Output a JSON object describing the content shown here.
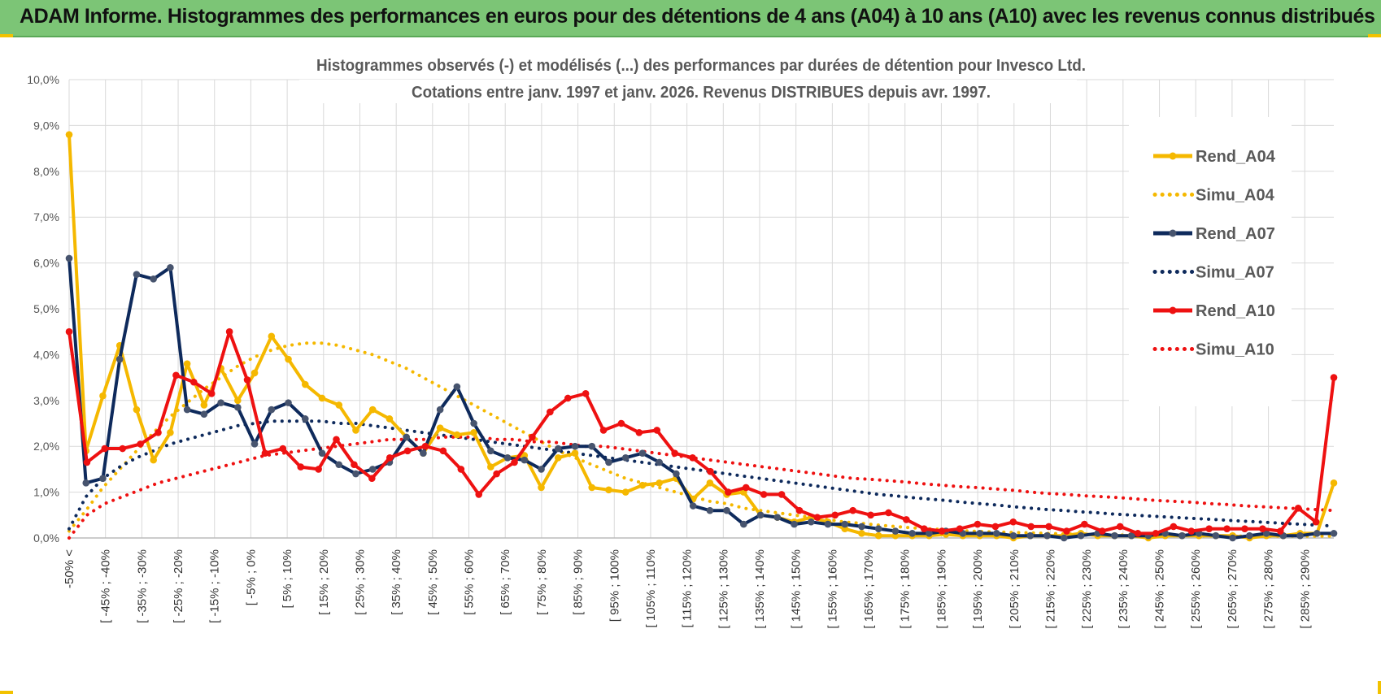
{
  "header": {
    "title": "ADAM Informe. Histogrammes des performances en euros pour des détentions de 4 ans (A04) à 10 ans (A10) avec les revenus connus distribués"
  },
  "colors": {
    "header_bg": "#7cc576",
    "a04": "#f5b800",
    "a07": "#0e2a5c",
    "a10": "#ee1111",
    "grid": "#d9d9d9"
  },
  "chart_data": {
    "type": "line",
    "title": [
      "Histogrammes observés (-) et modélisés (...) des performances par durées de détention pour Invesco Ltd.",
      "Cotations entre janv. 1997 et janv. 2026. Revenus DISTRIBUES depuis avr. 1997."
    ],
    "ylim": [
      0,
      10
    ],
    "y_ticks": [
      "0,0%",
      "1,0%",
      "2,0%",
      "3,0%",
      "4,0%",
      "5,0%",
      "6,0%",
      "7,0%",
      "8,0%",
      "9,0%",
      "10,0%"
    ],
    "x_tick_labels": [
      "-50% <",
      "[ -45% ; -40%",
      "[ -35% ; -30%",
      "[ -25% ; -20%",
      "[ -15% ; -10%",
      "[ -5% ; 0%",
      "[ 5% ; 10%",
      "[ 15% ; 20%",
      "[ 25% ; 30%",
      "[ 35% ; 40%",
      "[ 45% ; 50%",
      "[ 55% ; 60%",
      "[ 65% ; 70%",
      "[ 75% ; 80%",
      "[ 85% ; 90%",
      "[ 95% ; 100%",
      "[ 105% ; 110%",
      "[ 115% ; 120%",
      "[ 125% ; 130%",
      "[ 135% ; 140%",
      "[ 145% ; 150%",
      "[ 155% ; 160%",
      "[ 165% ; 170%",
      "[ 175% ; 180%",
      "[ 185% ; 190%",
      "[ 195% ; 200%",
      "[ 205% ; 210%",
      "[ 215% ; 220%",
      "[ 225% ; 230%",
      "[ 235% ; 240%",
      "[ 245% ; 250%",
      "[ 255% ; 260%",
      "[ 265% ; 270%",
      "[ 275% ; 280%",
      "[ 285% ; 290%"
    ],
    "grid": true,
    "legend_position": "right",
    "series": [
      {
        "name": "Rend_A04",
        "style": "solid",
        "color": "#f5b800",
        "values": [
          8.8,
          1.9,
          3.1,
          4.2,
          2.8,
          1.7,
          2.3,
          3.8,
          2.9,
          3.7,
          3.0,
          3.6,
          4.4,
          3.9,
          3.35,
          3.05,
          2.9,
          2.35,
          2.8,
          2.6,
          2.2,
          1.85,
          2.4,
          2.25,
          2.3,
          1.55,
          1.75,
          1.8,
          1.1,
          1.75,
          1.85,
          1.1,
          1.05,
          1.0,
          1.15,
          1.2,
          1.3,
          0.85,
          1.2,
          0.95,
          1.0,
          0.5,
          0.45,
          0.35,
          0.45,
          0.35,
          0.2,
          0.1,
          0.05,
          0.05,
          0.05,
          0.05,
          0.08,
          0.05,
          0.05,
          0.05,
          0.0,
          0.05,
          0.05,
          0.05,
          0.1,
          0.05,
          0.05,
          0.05,
          0.0,
          0.05,
          0.05,
          0.05,
          0.05,
          0.05,
          0.0,
          0.05,
          0.05,
          0.1,
          0.1,
          1.2
        ]
      },
      {
        "name": "Simu_A04",
        "style": "dotted",
        "color": "#f5b800",
        "values": [
          0.15,
          0.6,
          1.1,
          1.5,
          1.9,
          2.3,
          2.65,
          2.95,
          3.25,
          3.5,
          3.75,
          3.95,
          4.1,
          4.2,
          4.25,
          4.25,
          4.2,
          4.1,
          4.0,
          3.85,
          3.7,
          3.5,
          3.3,
          3.1,
          2.9,
          2.7,
          2.5,
          2.3,
          2.1,
          1.9,
          1.75,
          1.6,
          1.45,
          1.3,
          1.2,
          1.1,
          1.0,
          0.9,
          0.8,
          0.75,
          0.65,
          0.6,
          0.55,
          0.5,
          0.45,
          0.4,
          0.35,
          0.32,
          0.28,
          0.25,
          0.22,
          0.2,
          0.18,
          0.16,
          0.14,
          0.13,
          0.12,
          0.11,
          0.1,
          0.09,
          0.08,
          0.07,
          0.07,
          0.06,
          0.06,
          0.05,
          0.05,
          0.05,
          0.04,
          0.04,
          0.04,
          0.04,
          0.04,
          0.04,
          0.04,
          0.04
        ]
      },
      {
        "name": "Rend_A07",
        "style": "solid",
        "color": "#0e2a5c",
        "values": [
          6.1,
          1.2,
          1.3,
          3.9,
          5.75,
          5.65,
          5.9,
          2.8,
          2.7,
          2.95,
          2.85,
          2.05,
          2.8,
          2.95,
          2.6,
          1.85,
          1.6,
          1.4,
          1.5,
          1.65,
          2.2,
          1.85,
          2.8,
          3.3,
          2.5,
          1.9,
          1.75,
          1.7,
          1.5,
          1.95,
          2.0,
          2.0,
          1.65,
          1.75,
          1.85,
          1.65,
          1.4,
          0.7,
          0.6,
          0.6,
          0.3,
          0.5,
          0.45,
          0.3,
          0.35,
          0.3,
          0.3,
          0.25,
          0.2,
          0.15,
          0.1,
          0.1,
          0.15,
          0.1,
          0.1,
          0.1,
          0.05,
          0.05,
          0.05,
          0.0,
          0.05,
          0.1,
          0.05,
          0.05,
          0.05,
          0.1,
          0.05,
          0.1,
          0.05,
          0.0,
          0.05,
          0.1,
          0.05,
          0.05,
          0.1,
          0.1
        ]
      },
      {
        "name": "Simu_A07",
        "style": "dotted",
        "color": "#0e2a5c",
        "values": [
          0.2,
          0.9,
          1.3,
          1.55,
          1.75,
          1.9,
          2.05,
          2.15,
          2.25,
          2.35,
          2.45,
          2.5,
          2.55,
          2.55,
          2.55,
          2.55,
          2.5,
          2.5,
          2.45,
          2.4,
          2.35,
          2.3,
          2.25,
          2.2,
          2.15,
          2.1,
          2.05,
          2.0,
          1.95,
          1.9,
          1.85,
          1.8,
          1.75,
          1.7,
          1.65,
          1.6,
          1.55,
          1.5,
          1.45,
          1.4,
          1.35,
          1.3,
          1.25,
          1.2,
          1.15,
          1.1,
          1.05,
          1.0,
          0.95,
          0.92,
          0.88,
          0.85,
          0.82,
          0.78,
          0.75,
          0.72,
          0.68,
          0.65,
          0.62,
          0.6,
          0.57,
          0.55,
          0.52,
          0.5,
          0.48,
          0.46,
          0.44,
          0.42,
          0.4,
          0.38,
          0.36,
          0.34,
          0.32,
          0.3,
          0.28,
          0.26
        ]
      },
      {
        "name": "Rend_A10",
        "style": "solid",
        "color": "#ee1111",
        "values": [
          4.5,
          1.65,
          1.95,
          1.95,
          2.05,
          2.3,
          3.55,
          3.4,
          3.15,
          4.5,
          3.45,
          1.85,
          1.95,
          1.55,
          1.5,
          2.15,
          1.6,
          1.3,
          1.75,
          1.9,
          2.0,
          1.9,
          1.5,
          0.95,
          1.4,
          1.65,
          2.2,
          2.75,
          3.05,
          3.15,
          2.35,
          2.5,
          2.3,
          2.35,
          1.85,
          1.75,
          1.45,
          1.0,
          1.1,
          0.95,
          0.95,
          0.6,
          0.45,
          0.5,
          0.6,
          0.5,
          0.55,
          0.4,
          0.2,
          0.15,
          0.2,
          0.3,
          0.25,
          0.35,
          0.25,
          0.25,
          0.15,
          0.3,
          0.15,
          0.25,
          0.1,
          0.1,
          0.25,
          0.15,
          0.2,
          0.2,
          0.2,
          0.2,
          0.15,
          0.65,
          0.35,
          3.5
        ]
      },
      {
        "name": "Simu_A10",
        "style": "dotted",
        "color": "#ee1111",
        "values": [
          0.0,
          0.5,
          0.75,
          0.9,
          1.05,
          1.2,
          1.3,
          1.4,
          1.5,
          1.6,
          1.7,
          1.8,
          1.85,
          1.9,
          1.95,
          2.0,
          2.05,
          2.1,
          2.15,
          2.15,
          2.15,
          2.2,
          2.2,
          2.2,
          2.15,
          2.15,
          2.1,
          2.1,
          2.05,
          2.0,
          2.0,
          1.95,
          1.9,
          1.85,
          1.8,
          1.75,
          1.7,
          1.65,
          1.6,
          1.55,
          1.5,
          1.45,
          1.4,
          1.35,
          1.3,
          1.28,
          1.25,
          1.22,
          1.18,
          1.15,
          1.12,
          1.1,
          1.07,
          1.04,
          1.0,
          0.97,
          0.95,
          0.92,
          0.9,
          0.88,
          0.85,
          0.82,
          0.8,
          0.78,
          0.75,
          0.73,
          0.7,
          0.68,
          0.66,
          0.64,
          0.62,
          0.6
        ]
      }
    ]
  }
}
